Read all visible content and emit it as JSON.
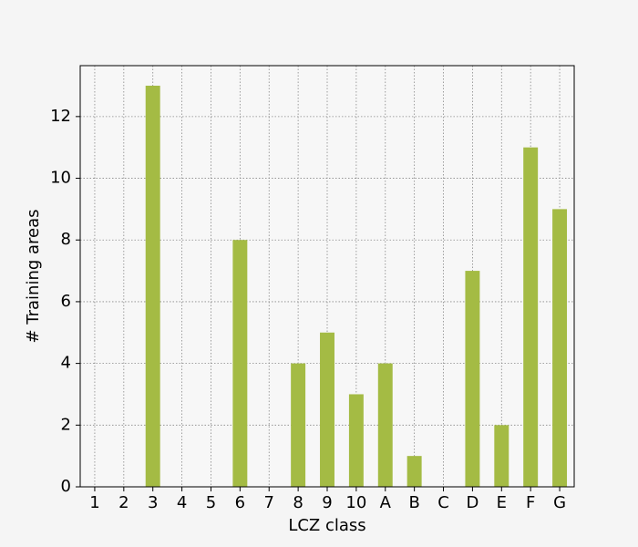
{
  "chart_data": {
    "type": "bar",
    "x_label": "LCZ class",
    "y_label": "# Training areas",
    "categories": [
      "1",
      "2",
      "3",
      "4",
      "5",
      "6",
      "7",
      "8",
      "9",
      "10",
      "A",
      "B",
      "C",
      "D",
      "E",
      "F",
      "G"
    ],
    "values": [
      0,
      0,
      13,
      0,
      0,
      8,
      0,
      4,
      5,
      3,
      4,
      1,
      0,
      7,
      2,
      11,
      9
    ],
    "color": "#a4bb44",
    "ylim": [
      0,
      13.65
    ],
    "yticks": [
      0,
      2,
      4,
      6,
      8,
      10,
      12
    ],
    "grid": true
  }
}
